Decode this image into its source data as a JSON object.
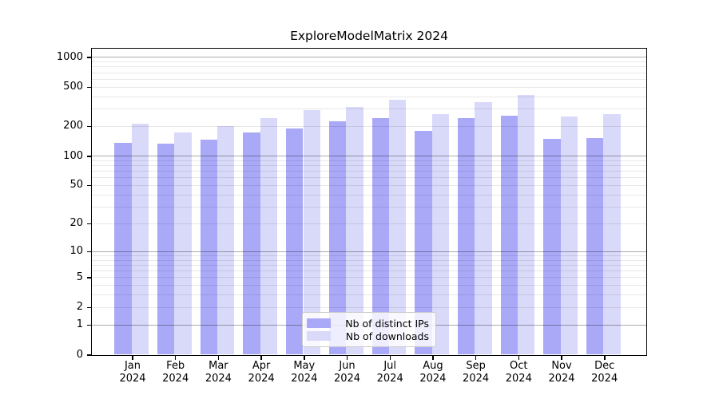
{
  "chart_data": {
    "type": "bar",
    "title": "ExploreModelMatrix 2024",
    "categories": [
      "Jan",
      "Feb",
      "Mar",
      "Apr",
      "May",
      "Jun",
      "Jul",
      "Aug",
      "Sep",
      "Oct",
      "Nov",
      "Dec"
    ],
    "category_year": "2024",
    "series": [
      {
        "name": "Nb of distinct IPs",
        "color": "#a9a9f8",
        "values": [
          136,
          132,
          145,
          172,
          190,
          224,
          242,
          178,
          242,
          255,
          148,
          150
        ]
      },
      {
        "name": "Nb of downloads",
        "color": "#d9d9f9",
        "values": [
          210,
          172,
          200,
          240,
          292,
          310,
          368,
          265,
          348,
          410,
          252,
          262
        ]
      }
    ],
    "yscale": "log1p",
    "ylim": [
      0,
      1270
    ],
    "yticks": [
      1000,
      500,
      200,
      100,
      50,
      20,
      10,
      5,
      2,
      1,
      0
    ],
    "grid": "horizontal major+minor",
    "legend_position": "inside-bottom-center"
  },
  "colors": {
    "major_grid": "rgba(0,0,0,0.33)",
    "minor_grid": "rgba(0,0,0,0.09)",
    "axis": "#000000",
    "legend_border": "#cccccc",
    "legend_background": "rgba(255,255,255,0.8)"
  }
}
